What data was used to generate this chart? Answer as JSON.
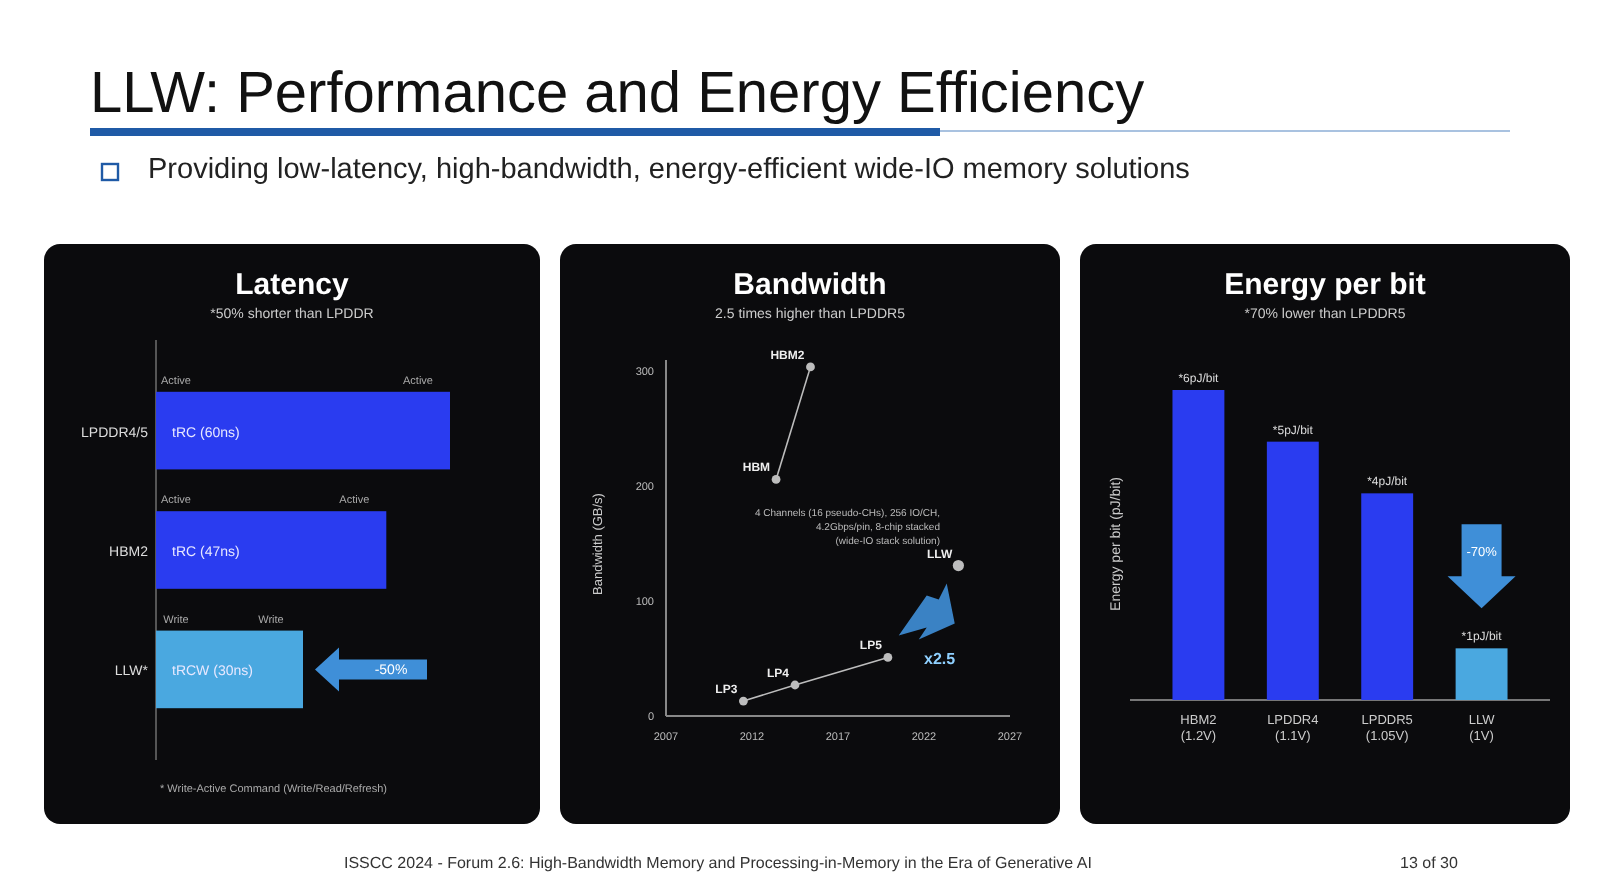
{
  "chart_data": [
    {
      "type": "other",
      "title": "LLW: Performance and Energy Efficiency",
      "subtitle": "Providing low-latency, high-bandwidth, energy-efficient wide-IO memory solutions",
      "annotations": [
        "ISSCC 2024 - Forum 2.6: High-Bandwidth Memory and Processing-in-Memory in the Era of Generative AI",
        "13 of 30"
      ]
    },
    {
      "type": "bar",
      "orientation": "horizontal",
      "title": "Latency",
      "subtitle": "*50% shorter than LPDDR",
      "categories": [
        "LPDDR4/5",
        "HBM2",
        "LLW*"
      ],
      "values": [
        60,
        47,
        30
      ],
      "colors": [
        "#2a3cf0",
        "#2a3cf0",
        "#4aa8e0"
      ],
      "value_labels": [
        "tRC (60ns)",
        "tRC (47ns)",
        "tRCW (30ns)"
      ],
      "annotations": [
        "Active",
        "Active",
        "Active",
        "Active",
        "Write",
        "Write",
        "-50%",
        "* Write-Active Command (Write/Read/Refresh)"
      ]
    },
    {
      "type": "line",
      "title": "Bandwidth",
      "subtitle": "2.5 times higher than LPDDR5",
      "ylabel": "Bandwidth (GB/s)",
      "xlim": [
        2007,
        2027
      ],
      "xticks": [
        2007,
        2012,
        2017,
        2022,
        2027
      ],
      "ylim": [
        0,
        310
      ],
      "yticks": [
        0,
        100,
        200,
        300
      ],
      "grid": false,
      "marker": "circle",
      "series": [
        {
          "color": "#bdbdbd",
          "x": [
            2011.5,
            2014.5,
            2019.9
          ],
          "values": [
            13,
            27,
            51
          ]
        },
        {
          "color": "#bdbdbd",
          "x": [
            2013.4,
            2015.4
          ],
          "values": [
            206,
            304
          ]
        },
        {
          "type": "scatter",
          "color": "#bdbdbd",
          "x": [
            2024
          ],
          "values": [
            131
          ]
        }
      ],
      "annotations": [
        {
          "text": "LP3",
          "x": 2011.5,
          "y": 13
        },
        {
          "text": "LP4",
          "x": 2014.5,
          "y": 27
        },
        {
          "text": "LP5",
          "x": 2019.9,
          "y": 51
        },
        {
          "text": "HBM",
          "x": 2013.4,
          "y": 206
        },
        {
          "text": "HBM2",
          "x": 2015.4,
          "y": 304
        },
        {
          "text": "LLW",
          "x": 2024,
          "y": 131
        },
        "x2.5",
        "4 Channels (16 pseudo-CHs), 256 IO/CH,",
        "4.2Gbps/pin, 8-chip stacked",
        "(wide-IO stack solution)"
      ]
    },
    {
      "type": "bar",
      "title": "Energy per bit",
      "subtitle": "*70% lower than LPDDR5",
      "ylabel": "Energy per bit (pJ/bit)",
      "categories": [
        "HBM2 (1.2V)",
        "LPDDR4 (1.1V)",
        "LPDDR5 (1.05V)",
        "LLW (1V)"
      ],
      "values": [
        6,
        5,
        4,
        1
      ],
      "colors": [
        "#2a3cf0",
        "#2a3cf0",
        "#2a3cf0",
        "#4aa8e0"
      ],
      "value_labels": [
        "*6pJ/bit",
        "*5pJ/bit",
        "*4pJ/bit",
        "*1pJ/bit"
      ],
      "annotations": [
        "-70%"
      ]
    }
  ]
}
